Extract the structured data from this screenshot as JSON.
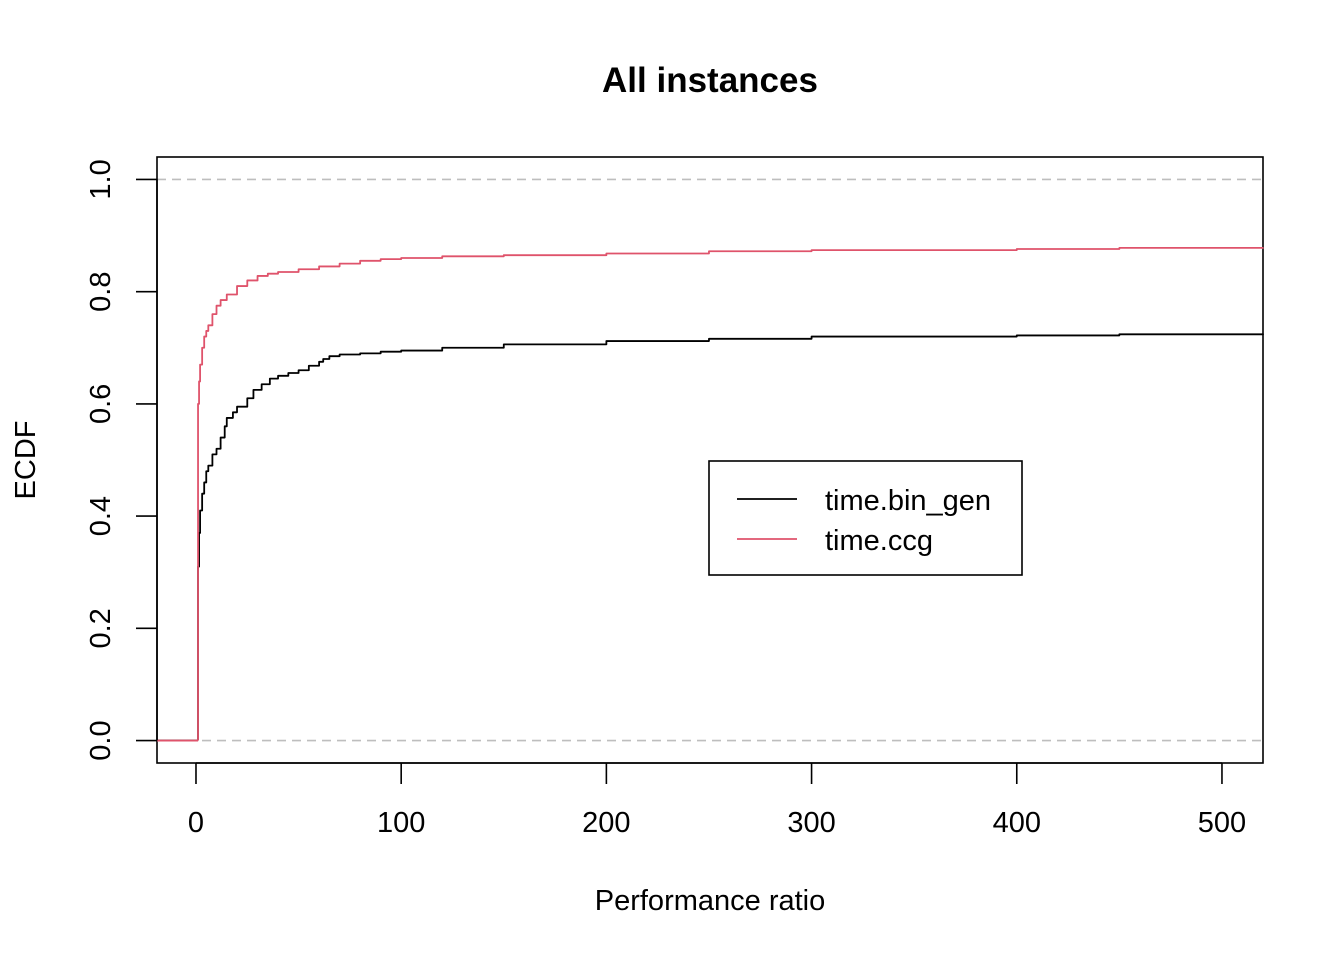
{
  "chart_data": {
    "type": "line",
    "title": "All instances",
    "xlabel": "Performance ratio",
    "ylabel": "ECDF",
    "xlim": [
      -19,
      520
    ],
    "ylim": [
      -0.04,
      1.04
    ],
    "x_ticks": [
      0,
      100,
      200,
      300,
      400,
      500
    ],
    "x_tick_labels": [
      "0",
      "100",
      "200",
      "300",
      "400",
      "500"
    ],
    "y_ticks": [
      0,
      0.2,
      0.4,
      0.6,
      0.8,
      1.0
    ],
    "y_tick_labels": [
      "0.0",
      "0.2",
      "0.4",
      "0.6",
      "0.8",
      "1.0"
    ],
    "reference_lines": [
      {
        "y": 0,
        "style": "dashed",
        "color": "#bebebe"
      },
      {
        "y": 1,
        "style": "dashed",
        "color": "#bebebe"
      }
    ],
    "grid": false,
    "legend": {
      "placement": "center-right",
      "entries": [
        "time.bin_gen",
        "time.ccg"
      ]
    },
    "series": [
      {
        "name": "time.bin_gen",
        "color": "#000000",
        "pre_segment": {
          "x": [
            -19,
            1
          ],
          "y": [
            0,
            0
          ]
        },
        "x": [
          1,
          1.5,
          2,
          3,
          4,
          5,
          6,
          8,
          10,
          12,
          14,
          15,
          18,
          20,
          25,
          28,
          32,
          36,
          40,
          45,
          50,
          55,
          60,
          62,
          65,
          70,
          80,
          90,
          100,
          120,
          150,
          200,
          250,
          300,
          400,
          450,
          520
        ],
        "y": [
          0.31,
          0.37,
          0.41,
          0.44,
          0.46,
          0.48,
          0.49,
          0.51,
          0.52,
          0.54,
          0.56,
          0.575,
          0.585,
          0.595,
          0.61,
          0.625,
          0.635,
          0.645,
          0.65,
          0.655,
          0.66,
          0.668,
          0.675,
          0.68,
          0.685,
          0.688,
          0.69,
          0.693,
          0.695,
          0.7,
          0.706,
          0.712,
          0.716,
          0.72,
          0.722,
          0.724,
          0.725
        ]
      },
      {
        "name": "time.ccg",
        "color": "#df536b",
        "pre_segment": {
          "x": [
            -19,
            1
          ],
          "y": [
            0,
            0
          ]
        },
        "x": [
          1,
          1.5,
          2,
          3,
          4,
          5,
          6,
          8,
          10,
          12,
          15,
          20,
          25,
          30,
          35,
          40,
          50,
          60,
          70,
          80,
          90,
          100,
          120,
          150,
          200,
          250,
          300,
          400,
          450,
          520
        ],
        "y": [
          0.6,
          0.64,
          0.67,
          0.7,
          0.72,
          0.73,
          0.74,
          0.76,
          0.775,
          0.785,
          0.795,
          0.81,
          0.82,
          0.828,
          0.832,
          0.835,
          0.84,
          0.845,
          0.85,
          0.855,
          0.858,
          0.86,
          0.863,
          0.865,
          0.868,
          0.872,
          0.874,
          0.876,
          0.878,
          0.879
        ]
      }
    ]
  }
}
